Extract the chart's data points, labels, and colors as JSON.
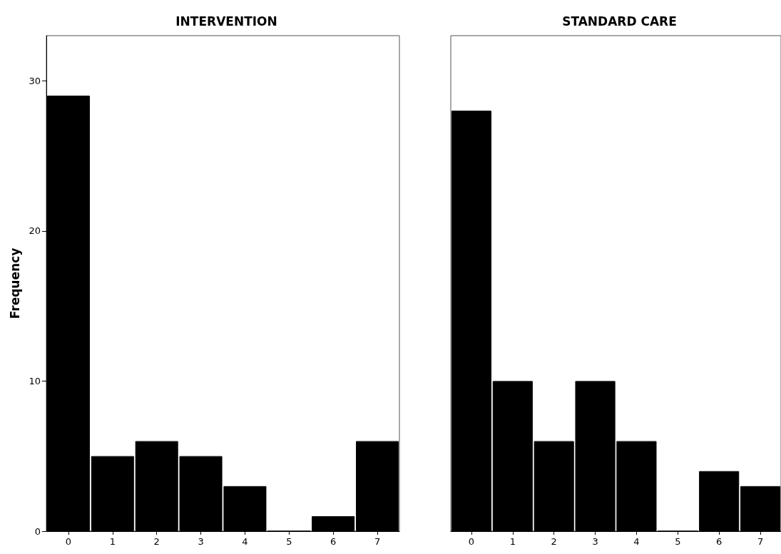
{
  "chart_data": [
    {
      "type": "bar",
      "title": "INTERVENTION",
      "ylabel": "Frequency",
      "categories": [
        "0",
        "1",
        "2",
        "3",
        "4",
        "5",
        "6",
        "7"
      ],
      "values": [
        29,
        5,
        6,
        5,
        3,
        0,
        1,
        6
      ],
      "color": "#000000",
      "ylim": [
        0,
        33
      ],
      "yticks": [
        0,
        10,
        20,
        30
      ]
    },
    {
      "type": "bar",
      "title": "STANDARD CARE",
      "categories": [
        "0",
        "1",
        "2",
        "3",
        "4",
        "5",
        "6",
        "7"
      ],
      "values": [
        28,
        10,
        6,
        10,
        6,
        0,
        4,
        3
      ],
      "color": "#000000",
      "ylim": [
        0,
        33
      ],
      "yticks": [
        0,
        10,
        20,
        30
      ],
      "tick_labels": "x"
    }
  ]
}
